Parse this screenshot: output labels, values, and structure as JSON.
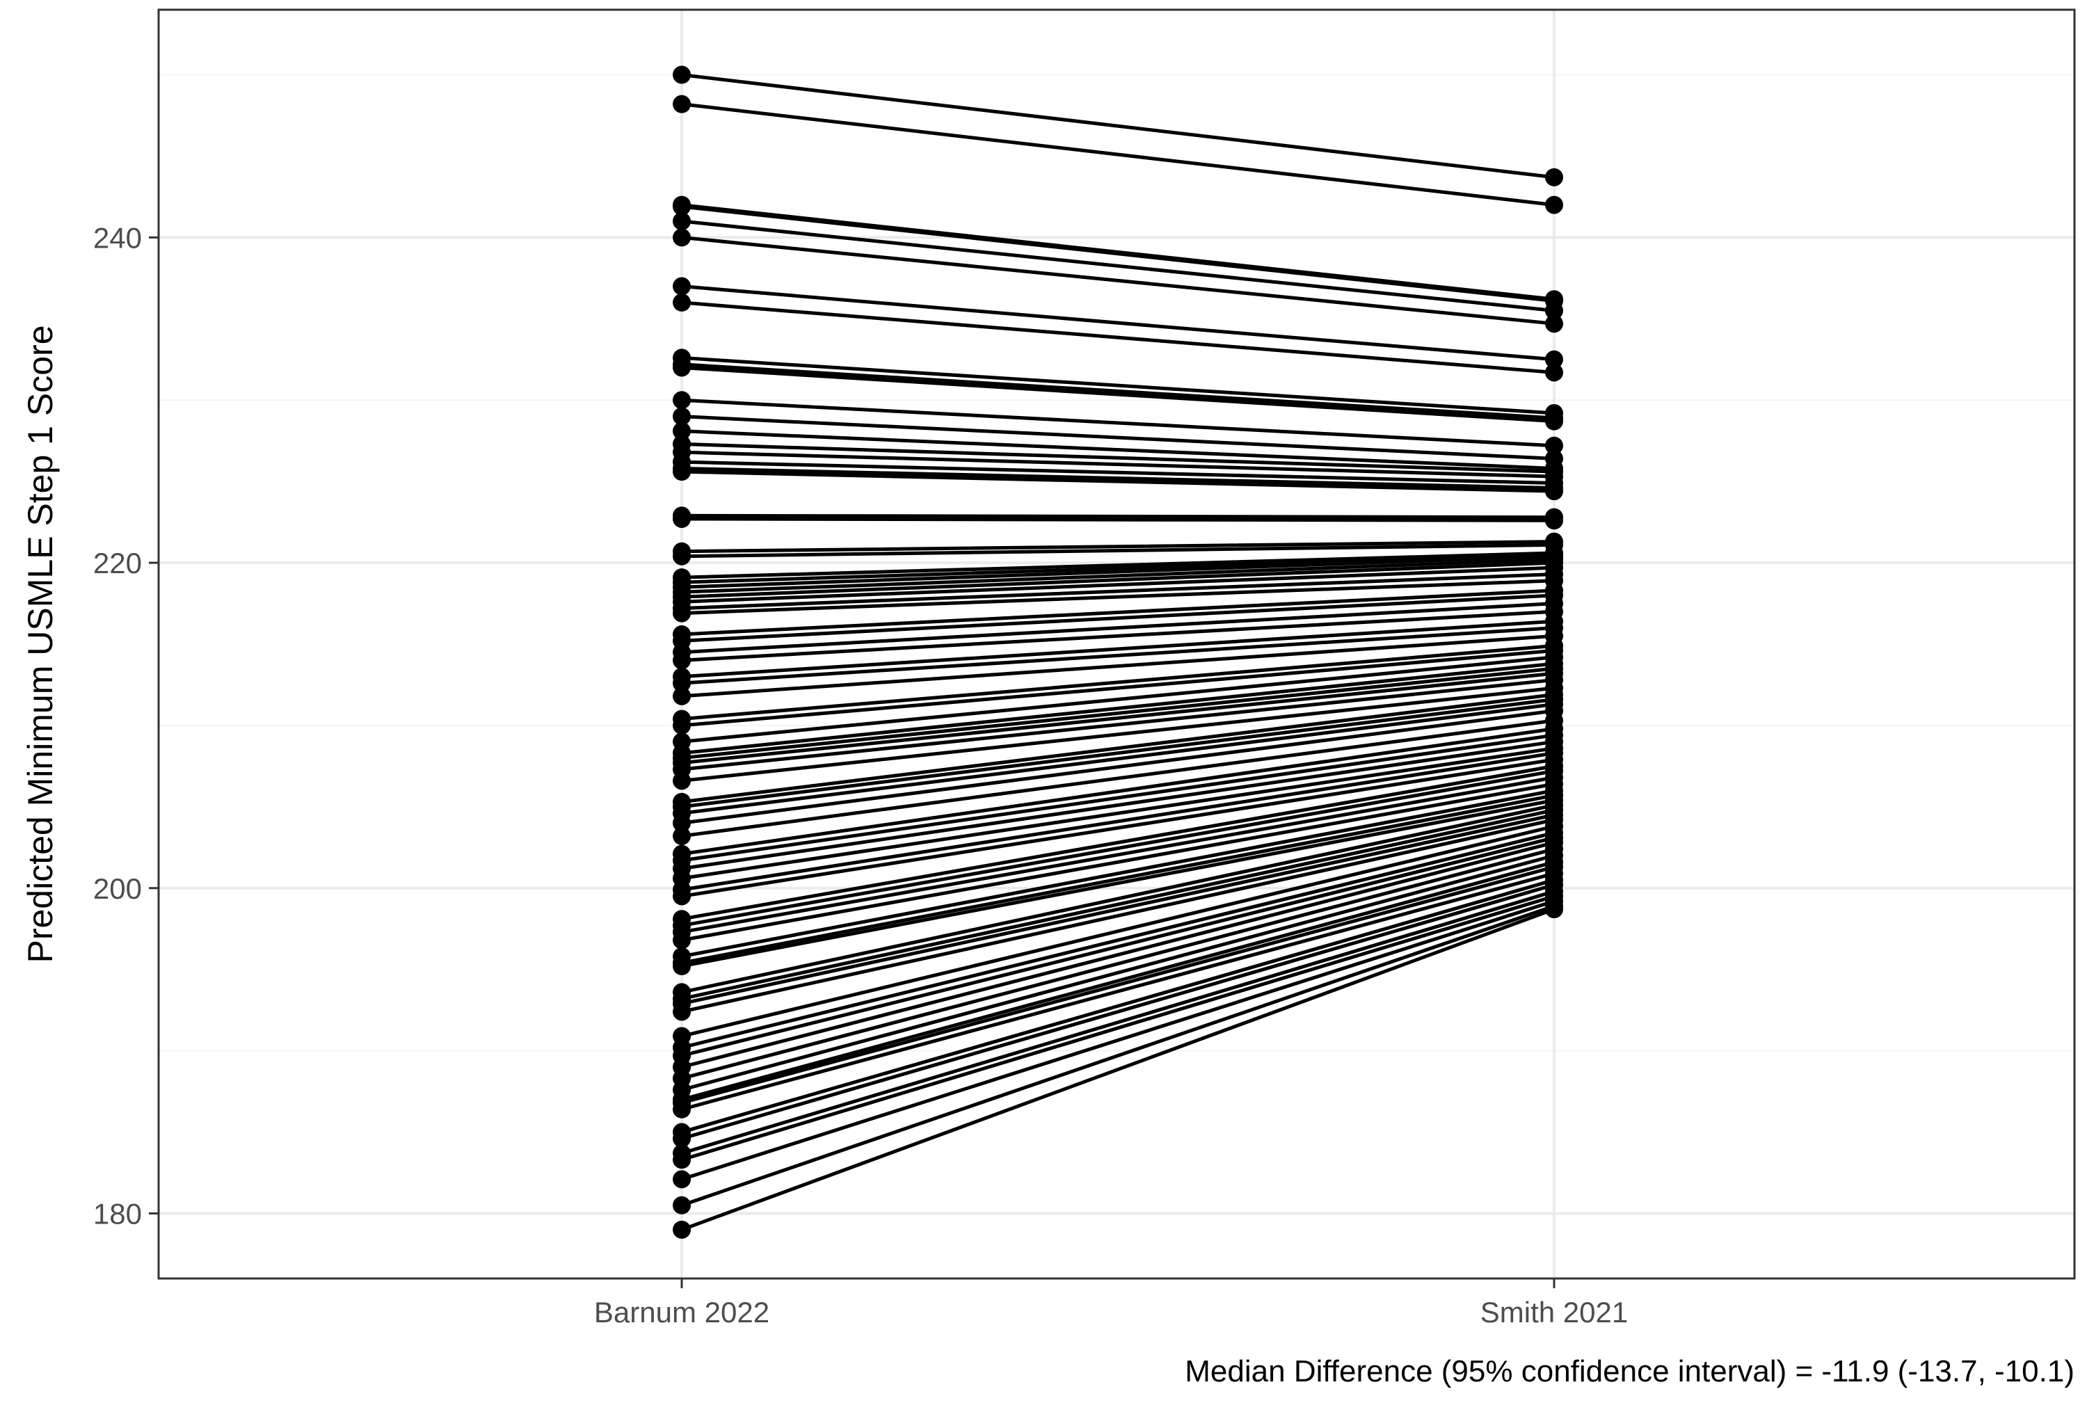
{
  "chart_data": {
    "type": "line",
    "title": "",
    "xlabel": "",
    "ylabel": "Predicted Minimum USMLE Step 1 Score",
    "categories": [
      "Barnum 2022",
      "Smith 2021"
    ],
    "ylim": [
      176,
      254
    ],
    "yticks": [
      180,
      200,
      220,
      240
    ],
    "y_tick_labels": [
      "180",
      "200",
      "220",
      "240"
    ],
    "grid": true,
    "legend": "none",
    "caption": "Median Difference (95% confidence interval) = -11.9 (-13.7, -10.1)",
    "colors": {
      "line": "#000000",
      "point": "#000000",
      "grid_major": "#ebebeb",
      "grid_minor": "#f4f4f4",
      "panel_border": "#333333",
      "tick_text": "#4d4d4d"
    },
    "pairs": [
      [
        250.0,
        243.7
      ],
      [
        248.2,
        242.0
      ],
      [
        242.0,
        236.2
      ],
      [
        241.9,
        236.1
      ],
      [
        241.0,
        235.5
      ],
      [
        240.0,
        234.7
      ],
      [
        237.0,
        232.5
      ],
      [
        236.0,
        231.7
      ],
      [
        232.6,
        229.2
      ],
      [
        232.2,
        228.9
      ],
      [
        232.0,
        228.7
      ],
      [
        230.0,
        227.2
      ],
      [
        229.0,
        226.4
      ],
      [
        228.1,
        225.8
      ],
      [
        227.3,
        225.6
      ],
      [
        226.8,
        225.3
      ],
      [
        226.2,
        224.9
      ],
      [
        225.8,
        224.6
      ],
      [
        225.6,
        224.4
      ],
      [
        222.9,
        222.8
      ],
      [
        222.7,
        222.6
      ],
      [
        220.7,
        221.3
      ],
      [
        220.4,
        221.1
      ],
      [
        219.1,
        220.6
      ],
      [
        218.8,
        220.5
      ],
      [
        218.5,
        220.4
      ],
      [
        218.2,
        220.2
      ],
      [
        217.9,
        220.0
      ],
      [
        217.6,
        219.7
      ],
      [
        217.2,
        219.3
      ],
      [
        216.9,
        218.9
      ],
      [
        215.6,
        218.3
      ],
      [
        215.2,
        218.0
      ],
      [
        214.5,
        217.5
      ],
      [
        214.0,
        217.0
      ],
      [
        213.0,
        216.4
      ],
      [
        212.6,
        216.0
      ],
      [
        211.8,
        215.5
      ],
      [
        210.4,
        214.9
      ],
      [
        210.0,
        214.6
      ],
      [
        209.0,
        214.2
      ],
      [
        208.3,
        213.8
      ],
      [
        208.0,
        213.5
      ],
      [
        207.7,
        213.2
      ],
      [
        207.3,
        212.8
      ],
      [
        206.6,
        212.3
      ],
      [
        205.3,
        211.9
      ],
      [
        205.0,
        211.6
      ],
      [
        204.6,
        211.3
      ],
      [
        204.0,
        210.9
      ],
      [
        203.2,
        210.3
      ],
      [
        202.1,
        209.8
      ],
      [
        201.7,
        209.4
      ],
      [
        201.2,
        209.0
      ],
      [
        200.6,
        208.6
      ],
      [
        199.9,
        208.3
      ],
      [
        199.5,
        207.9
      ],
      [
        198.1,
        207.5
      ],
      [
        197.7,
        207.2
      ],
      [
        197.3,
        206.8
      ],
      [
        196.8,
        206.4
      ],
      [
        195.8,
        206.0
      ],
      [
        195.4,
        205.7
      ],
      [
        195.2,
        205.4
      ],
      [
        193.6,
        205.1
      ],
      [
        193.2,
        204.8
      ],
      [
        192.9,
        204.5
      ],
      [
        192.4,
        204.2
      ],
      [
        190.9,
        203.8
      ],
      [
        190.2,
        203.4
      ],
      [
        189.7,
        203.1
      ],
      [
        189.0,
        202.8
      ],
      [
        188.3,
        202.4
      ],
      [
        187.6,
        202.0
      ],
      [
        187.0,
        201.6
      ],
      [
        186.8,
        201.3
      ],
      [
        186.4,
        200.9
      ],
      [
        185.0,
        200.5
      ],
      [
        184.6,
        200.2
      ],
      [
        183.7,
        199.8
      ],
      [
        183.3,
        199.5
      ],
      [
        182.1,
        199.2
      ],
      [
        180.5,
        198.9
      ],
      [
        179.0,
        198.7
      ]
    ]
  }
}
